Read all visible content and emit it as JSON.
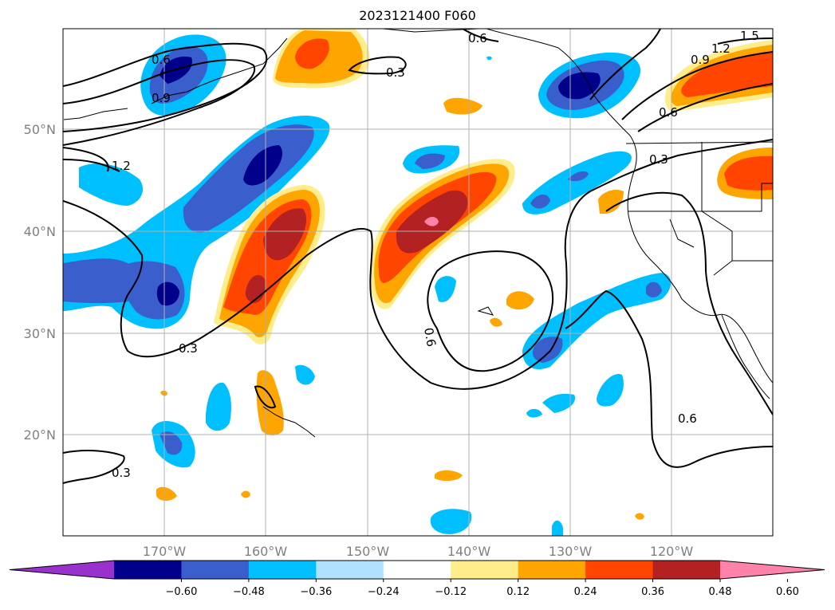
{
  "title": "2023121400 F060",
  "map": {
    "lat_labels": [
      "50°N",
      "40°N",
      "30°N",
      "20°N"
    ],
    "lon_labels": [
      "170°W",
      "160°W",
      "150°W",
      "140°W",
      "130°W",
      "120°W"
    ],
    "lon_range": [
      -180,
      -110
    ],
    "lat_range": [
      10,
      60
    ],
    "gridlines": true,
    "contour_labels": [
      "0.6",
      "0.9",
      "1.2",
      "0.3",
      "0.6",
      "0.9",
      "1.2",
      "1.5",
      "0.6",
      "0.3",
      "0.3",
      "0.6",
      "0.6",
      "0.3"
    ]
  },
  "colorbar": {
    "ticks": [
      "−0.60",
      "−0.48",
      "−0.36",
      "−0.24",
      "−0.12",
      "0.12",
      "0.24",
      "0.36",
      "0.48",
      "0.60"
    ],
    "colors": [
      "#9932cc",
      "#00008b",
      "#3a5fcd",
      "#00bfff",
      "#b0e2ff",
      "#ffffff",
      "#ffec8b",
      "#ffa500",
      "#ff4500",
      "#b22222",
      "#ff82ab"
    ]
  }
}
